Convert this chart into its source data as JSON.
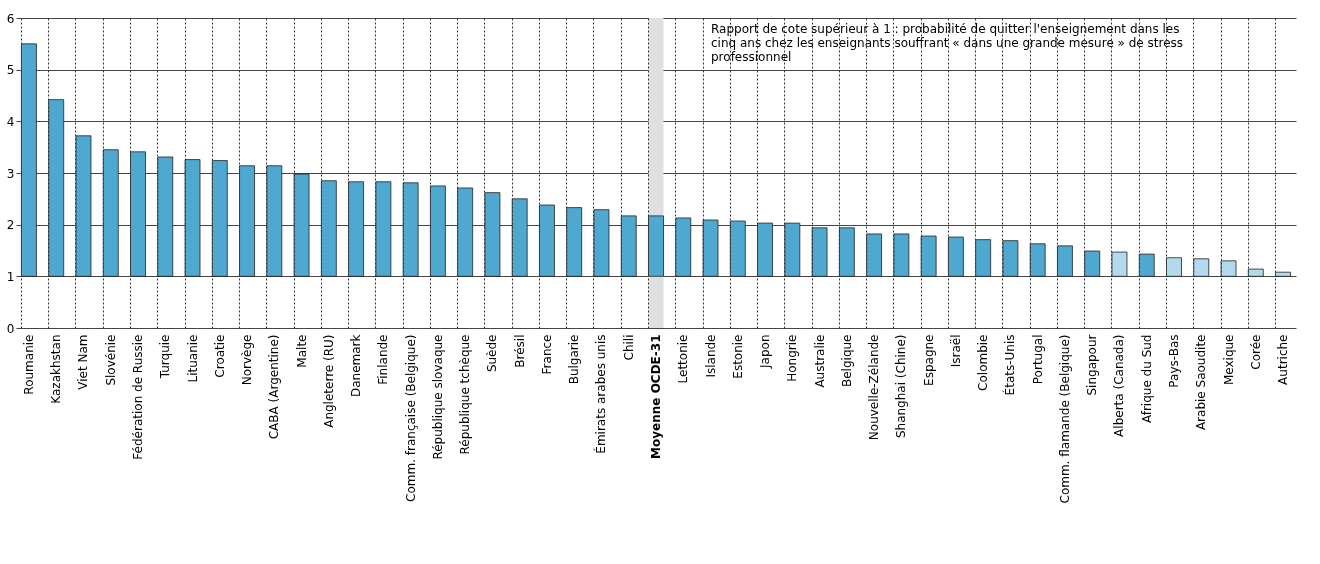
{
  "chart_data": {
    "type": "bar",
    "categories": [
      "Roumanie",
      "Kazakhstan",
      "Viet Nam",
      "Slovénie",
      "Fédération de Russie",
      "Turquie",
      "Lituanie",
      "Croatie",
      "Norvège",
      "CABA (Argentine)",
      "Malte",
      "Angleterre (RU)",
      "Danemark",
      "Finlande",
      "Comm. française (Belgique)",
      "République slovaque",
      "République tchèque",
      "Suède",
      "Brésil",
      "France",
      "Bulgarie",
      "Émirats arabes unis",
      "Chili",
      "Moyenne OCDE-31",
      "Lettonie",
      "Islande",
      "Estonie",
      "Japon",
      "Hongrie",
      "Australie",
      "Belgique",
      "Nouvelle-Zélande",
      "Shanghai (Chine)",
      "Espagne",
      "Israël",
      "Colombie",
      "États-Unis",
      "Portugal",
      "Comm. flamande (Belgique)",
      "Singapour",
      "Alberta (Canada)",
      "Afrique du Sud",
      "Pays-Bas",
      "Arabie Saoudite",
      "Mexique",
      "Corée",
      "Autriche"
    ],
    "base": [
      1,
      1,
      1,
      1,
      1,
      1,
      1,
      1,
      1,
      1,
      1,
      1,
      1,
      1,
      1,
      1,
      1,
      1,
      1,
      1,
      1,
      1,
      1,
      1,
      1,
      1,
      1,
      1,
      1,
      1,
      1,
      1,
      1,
      1,
      1,
      1,
      1,
      1,
      1,
      1,
      1,
      1,
      1,
      1,
      1,
      1,
      1
    ],
    "values": [
      4.5,
      3.42,
      2.72,
      2.45,
      2.41,
      2.31,
      2.26,
      2.24,
      2.14,
      2.14,
      1.98,
      1.85,
      1.83,
      1.83,
      1.81,
      1.75,
      1.71,
      1.62,
      1.5,
      1.38,
      1.33,
      1.29,
      1.17,
      1.17,
      1.13,
      1.09,
      1.07,
      1.03,
      1.03,
      0.94,
      0.94,
      0.82,
      0.82,
      0.78,
      0.76,
      0.71,
      0.69,
      0.63,
      0.59,
      0.49,
      0.47,
      0.43,
      0.36,
      0.34,
      0.3,
      0.14,
      0.08
    ],
    "colors": [
      "#4fa8d0",
      "#4fa8d0",
      "#4fa8d0",
      "#4fa8d0",
      "#4fa8d0",
      "#4fa8d0",
      "#4fa8d0",
      "#4fa8d0",
      "#4fa8d0",
      "#4fa8d0",
      "#4fa8d0",
      "#4fa8d0",
      "#4fa8d0",
      "#4fa8d0",
      "#4fa8d0",
      "#4fa8d0",
      "#4fa8d0",
      "#4fa8d0",
      "#4fa8d0",
      "#4fa8d0",
      "#4fa8d0",
      "#4fa8d0",
      "#4fa8d0",
      "#4fa8d0",
      "#4fa8d0",
      "#4fa8d0",
      "#4fa8d0",
      "#4fa8d0",
      "#4fa8d0",
      "#4fa8d0",
      "#4fa8d0",
      "#4fa8d0",
      "#4fa8d0",
      "#4fa8d0",
      "#4fa8d0",
      "#4fa8d0",
      "#4fa8d0",
      "#4fa8d0",
      "#4fa8d0",
      "#4fa8d0",
      "#b3d9ec",
      "#4fa8d0",
      "#b3d9ec",
      "#b3d9ec",
      "#b3d9ec",
      "#b3d9ec",
      "#b3d9ec"
    ],
    "ylim": [
      0,
      6
    ],
    "yticks": [
      0,
      1,
      2,
      3,
      4,
      5,
      6
    ],
    "grid": true,
    "bands": [
      {
        "axis": "x",
        "from": "Moyenne OCDE-31",
        "to": "Moyenne OCDE-31",
        "color": "#e0e0e0"
      }
    ],
    "annotations": [
      "Rapport de cote supérieur à 1 : probabilité de quitter l'enseignement dans les cinq ans chez les enseignants souffrant « dans une grande mesure » de stress professionnel"
    ]
  }
}
